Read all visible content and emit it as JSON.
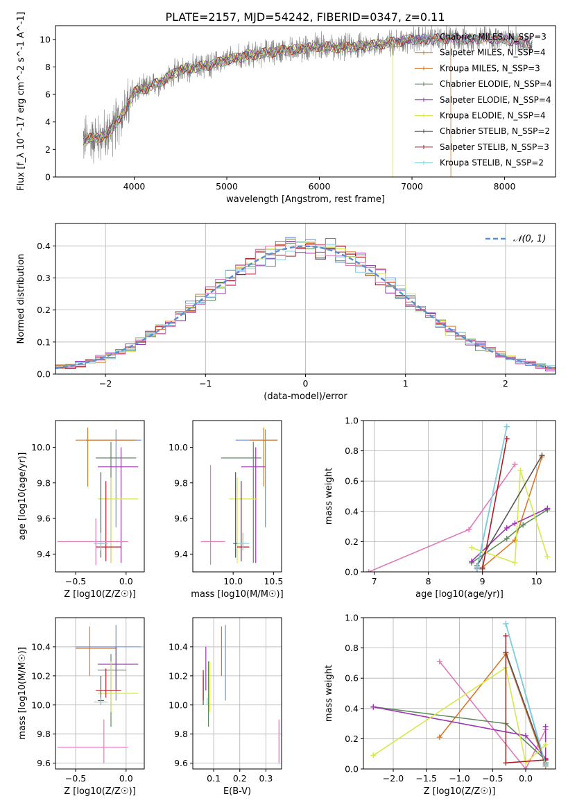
{
  "figure_title": "PLATE=2157, MJD=54242, FIBERID=0347, z=0.11",
  "colors": {
    "blue": "#6f8fd8",
    "orange": "#d9782b",
    "green": "#5f8a5c",
    "purple": "#9a34b0",
    "yellow": "#d8e84a",
    "dark": "#555555",
    "red": "#b01c22",
    "cyan": "#7dd2dc",
    "pink": "#e07ab8",
    "gray": "#7f7f7f",
    "gauss": "#5a8fd0",
    "grid": "#b0b0b0"
  },
  "chart_data": [
    {
      "id": "spectrum",
      "type": "line",
      "title": "PLATE=2157, MJD=54242, FIBERID=0347, z=0.11",
      "xlabel": "wavelength [Angstrom, rest frame]",
      "ylabel": "Flux [f_λ 10^-17 erg cm^-2 s^-1 A^-1]",
      "xlim": [
        3150,
        8550
      ],
      "ylim": [
        0,
        11
      ],
      "xticks": [
        4000,
        5000,
        6000,
        7000,
        8000
      ],
      "yticks": [
        0,
        2,
        4,
        6,
        8,
        10
      ],
      "grid": false,
      "legend_position": "top-right",
      "continuum_wavelength": [
        3450,
        3700,
        3900,
        4000,
        4150,
        4300,
        4500,
        4700,
        4850,
        5000,
        5200,
        5400,
        5600,
        5800,
        6000,
        6200,
        6400,
        6600,
        6800,
        7000,
        7200,
        7400,
        7600,
        7800,
        8000,
        8300
      ],
      "continuum_flux": [
        2.7,
        3.0,
        4.8,
        6.2,
        6.5,
        7.0,
        7.8,
        8.0,
        8.2,
        8.5,
        8.8,
        9.0,
        9.2,
        9.3,
        9.5,
        9.4,
        9.5,
        9.6,
        9.8,
        10.0,
        10.0,
        10.1,
        10.0,
        10.1,
        10.0,
        9.7
      ],
      "series": [
        {
          "name": "Chabrier MILES, N_SSP=3",
          "color": "blue"
        },
        {
          "name": "Salpeter MILES, N_SSP=4",
          "color": "orange"
        },
        {
          "name": "Kroupa MILES, N_SSP=3",
          "color": "orange"
        },
        {
          "name": "Chabrier ELODIE, N_SSP=4",
          "color": "green"
        },
        {
          "name": "Salpeter ELODIE, N_SSP=4",
          "color": "purple"
        },
        {
          "name": "Kroupa ELODIE, N_SSP=4",
          "color": "yellow"
        },
        {
          "name": "Chabrier STELIB, N_SSP=2",
          "color": "dark"
        },
        {
          "name": "Salpeter STELIB, N_SSP=3",
          "color": "red"
        },
        {
          "name": "Kroupa STELIB, N_SSP=2",
          "color": "cyan"
        }
      ]
    },
    {
      "id": "residuals",
      "type": "line",
      "xlabel": "(data-model)/error",
      "ylabel": "Normed distribution",
      "xlim": [
        -2.5,
        2.5
      ],
      "ylim": [
        0,
        0.47
      ],
      "xticks": [
        -2,
        -1,
        0,
        1,
        2
      ],
      "yticks": [
        0.0,
        0.1,
        0.2,
        0.3,
        0.4
      ],
      "grid": true,
      "legend_position": "top-right",
      "gaussian_label": "𝒩(0, 1)",
      "bin_width": 0.1,
      "hist_colors": [
        "blue",
        "orange",
        "green",
        "purple",
        "yellow",
        "red",
        "cyan",
        "pink"
      ]
    },
    {
      "id": "z_age",
      "type": "scatter",
      "xlabel": "Z [log10(Z/Z☉)]",
      "ylabel": "age [log10(age/yr)]",
      "xlim": [
        -0.7,
        0.18
      ],
      "ylim": [
        9.3,
        10.15
      ],
      "xticks": [
        -0.5,
        0.0
      ],
      "yticks": [
        9.4,
        9.6,
        9.8,
        10.0
      ],
      "grid": false,
      "points": [
        {
          "c": "blue",
          "x": -0.1,
          "xe": [
            -0.4,
            0.15
          ],
          "y": 10.04,
          "ye": [
            9.55,
            10.1
          ]
        },
        {
          "c": "orange",
          "x": -0.38,
          "xe": [
            -0.5,
            0.1
          ],
          "y": 10.04,
          "ye": [
            9.78,
            10.11
          ]
        },
        {
          "c": "green",
          "x": -0.15,
          "xe": [
            -0.3,
            0.1
          ],
          "y": 9.94,
          "ye": [
            9.35,
            10.03
          ]
        },
        {
          "c": "purple",
          "x": -0.05,
          "xe": [
            -0.28,
            0.12
          ],
          "y": 9.89,
          "ye": [
            9.35,
            10.0
          ]
        },
        {
          "c": "yellow",
          "x": -0.15,
          "xe": [
            -0.28,
            0.12
          ],
          "y": 9.71,
          "ye": [
            9.35,
            9.83
          ]
        },
        {
          "c": "dark",
          "x": -0.25,
          "xe": [
            -0.28,
            -0.22
          ],
          "y": 9.46,
          "ye": [
            9.38,
            9.86
          ]
        },
        {
          "c": "red",
          "x": -0.2,
          "xe": [
            -0.3,
            -0.05
          ],
          "y": 9.44,
          "ye": [
            9.36,
            9.81
          ]
        },
        {
          "c": "cyan",
          "x": -0.25,
          "xe": [
            -0.32,
            -0.18
          ],
          "y": 9.46,
          "ye": [
            9.42,
            9.52
          ]
        },
        {
          "c": "pink",
          "x": -0.3,
          "xe": [
            -0.68,
            0.02
          ],
          "y": 9.47,
          "ye": [
            9.34,
            9.6
          ]
        }
      ]
    },
    {
      "id": "mass_age",
      "type": "scatter",
      "xlabel": "mass [log10(M/M☉)]",
      "ylabel": "",
      "xlim": [
        9.5,
        10.6
      ],
      "ylim": [
        9.3,
        10.15
      ],
      "xticks": [
        10.0,
        10.5
      ],
      "yticks": [
        9.4,
        9.6,
        9.8,
        10.0
      ],
      "grid": false,
      "points": [
        {
          "c": "blue",
          "x": 10.4,
          "xe": [
            10.03,
            10.55
          ],
          "y": 10.04,
          "ye": [
            9.55,
            10.1
          ]
        },
        {
          "c": "orange",
          "x": 10.38,
          "xe": [
            10.2,
            10.55
          ],
          "y": 10.04,
          "ye": [
            9.78,
            10.11
          ]
        },
        {
          "c": "green",
          "x": 10.25,
          "xe": [
            9.85,
            10.35
          ],
          "y": 9.94,
          "ye": [
            9.35,
            10.03
          ]
        },
        {
          "c": "purple",
          "x": 10.28,
          "xe": [
            10.1,
            10.4
          ],
          "y": 9.89,
          "ye": [
            9.35,
            10.0
          ]
        },
        {
          "c": "yellow",
          "x": 10.05,
          "xe": [
            9.95,
            10.3
          ],
          "y": 9.71,
          "ye": [
            9.35,
            9.83
          ]
        },
        {
          "c": "dark",
          "x": 10.03,
          "xe": [
            10.0,
            10.06
          ],
          "y": 9.46,
          "ye": [
            9.38,
            9.86
          ]
        },
        {
          "c": "red",
          "x": 10.1,
          "xe": [
            10.05,
            10.2
          ],
          "y": 9.44,
          "ye": [
            9.36,
            9.81
          ]
        },
        {
          "c": "cyan",
          "x": 10.12,
          "xe": [
            10.05,
            10.2
          ],
          "y": 9.46,
          "ye": [
            9.42,
            9.52
          ]
        },
        {
          "c": "pink",
          "x": 9.72,
          "xe": [
            9.6,
            9.9
          ],
          "y": 9.47,
          "ye": [
            9.34,
            9.9
          ]
        }
      ]
    },
    {
      "id": "weight_age",
      "type": "line",
      "xlabel": "age [log10(age/yr)]",
      "ylabel": "mass weight",
      "xlim": [
        6.8,
        10.35
      ],
      "ylim": [
        0,
        1
      ],
      "xticks": [
        7,
        8,
        9,
        10
      ],
      "yticks": [
        0.0,
        0.2,
        0.4,
        0.6,
        0.8,
        1.0
      ],
      "grid": true,
      "series": [
        {
          "c": "pink",
          "x": [
            6.9,
            8.75,
            9.6
          ],
          "y": [
            0.0,
            0.28,
            0.71
          ]
        },
        {
          "c": "blue",
          "x": [
            8.9,
            9.45
          ],
          "y": [
            0.02,
            0.96
          ]
        },
        {
          "c": "orange",
          "x": [
            9.0,
            9.6,
            10.1
          ],
          "y": [
            0.03,
            0.21,
            0.76
          ]
        },
        {
          "c": "green",
          "x": [
            8.8,
            9.45,
            9.75,
            10.2
          ],
          "y": [
            0.06,
            0.22,
            0.31,
            0.41
          ]
        },
        {
          "c": "purple",
          "x": [
            8.8,
            9.45,
            9.6,
            10.2
          ],
          "y": [
            0.07,
            0.29,
            0.32,
            0.42
          ]
        },
        {
          "c": "yellow",
          "x": [
            8.8,
            9.6,
            9.7,
            10.2
          ],
          "y": [
            0.16,
            0.06,
            0.67,
            0.1
          ]
        },
        {
          "c": "dark",
          "x": [
            8.9,
            10.1
          ],
          "y": [
            0.04,
            0.77
          ]
        },
        {
          "c": "red",
          "x": [
            9.0,
            9.45
          ],
          "y": [
            0.02,
            0.88
          ]
        },
        {
          "c": "cyan",
          "x": [
            8.9,
            9.45
          ],
          "y": [
            0.03,
            0.96
          ]
        }
      ]
    },
    {
      "id": "z_mass",
      "type": "scatter",
      "xlabel": "Z [log10(Z/Z☉)]",
      "ylabel": "mass [log10(M/M☉)]",
      "xlim": [
        -0.7,
        0.18
      ],
      "ylim": [
        9.56,
        10.6
      ],
      "xticks": [
        -0.5,
        0.0
      ],
      "yticks": [
        9.6,
        9.8,
        10.0,
        10.2,
        10.4
      ],
      "grid": true,
      "points": [
        {
          "c": "blue",
          "x": -0.1,
          "xe": [
            -0.5,
            0.15
          ],
          "y": 10.4,
          "ye": [
            10.03,
            10.55
          ]
        },
        {
          "c": "orange",
          "x": -0.36,
          "xe": [
            -0.5,
            -0.1
          ],
          "y": 10.39,
          "ye": [
            10.2,
            10.54
          ]
        },
        {
          "c": "green",
          "x": -0.15,
          "xe": [
            -0.28,
            0.0
          ],
          "y": 10.24,
          "ye": [
            9.85,
            10.35
          ]
        },
        {
          "c": "purple",
          "x": -0.1,
          "xe": [
            -0.28,
            0.12
          ],
          "y": 10.28,
          "ye": [
            10.1,
            10.4
          ]
        },
        {
          "c": "yellow",
          "x": -0.15,
          "xe": [
            -0.28,
            0.12
          ],
          "y": 10.08,
          "ye": [
            9.95,
            10.3
          ]
        },
        {
          "c": "dark",
          "x": -0.25,
          "xe": [
            -0.28,
            -0.22
          ],
          "y": 10.03,
          "ye": [
            10.0,
            10.2
          ]
        },
        {
          "c": "red",
          "x": -0.2,
          "xe": [
            -0.3,
            -0.05
          ],
          "y": 10.1,
          "ye": [
            10.05,
            10.25
          ]
        },
        {
          "c": "cyan",
          "x": -0.25,
          "xe": [
            -0.32,
            -0.18
          ],
          "y": 10.02,
          "ye": [
            10.0,
            10.05
          ]
        },
        {
          "c": "pink",
          "x": -0.22,
          "xe": [
            -0.68,
            0.02
          ],
          "y": 9.71,
          "ye": [
            9.6,
            9.9
          ]
        }
      ]
    },
    {
      "id": "ebv_mass",
      "type": "scatter",
      "xlabel": "E(B-V)",
      "ylabel": "",
      "xlim": [
        0.02,
        0.36
      ],
      "ylim": [
        9.56,
        10.6
      ],
      "xticks": [
        0.1,
        0.2,
        0.3
      ],
      "yticks": [
        9.6,
        9.8,
        10.0,
        10.2,
        10.4
      ],
      "grid": true,
      "points": [
        {
          "c": "blue",
          "x": 0.145,
          "ye": [
            10.03,
            10.55
          ]
        },
        {
          "c": "orange",
          "x": 0.13,
          "ye": [
            10.2,
            10.54
          ]
        },
        {
          "c": "green",
          "x": 0.08,
          "ye": [
            9.85,
            10.3
          ]
        },
        {
          "c": "purple",
          "x": 0.07,
          "ye": [
            10.1,
            10.4
          ]
        },
        {
          "c": "yellow",
          "x": 0.085,
          "ye": [
            9.95,
            10.3
          ]
        },
        {
          "c": "dark",
          "x": 0.06,
          "ye": [
            10.0,
            10.2
          ]
        },
        {
          "c": "red",
          "x": 0.06,
          "ye": [
            10.03,
            10.24
          ]
        },
        {
          "c": "cyan",
          "x": 0.075,
          "ye": [
            10.0,
            10.05
          ]
        },
        {
          "c": "pink",
          "x": 0.35,
          "ye": [
            9.6,
            9.9
          ]
        }
      ]
    },
    {
      "id": "weight_z",
      "type": "line",
      "xlabel": "Z [log10(Z/Z☉)]",
      "ylabel": "mass weight",
      "xlim": [
        -2.45,
        0.45
      ],
      "ylim": [
        0,
        1
      ],
      "xticks": [
        -2.0,
        -1.5,
        -1.0,
        -0.5,
        0.0
      ],
      "yticks": [
        0.0,
        0.2,
        0.4,
        0.6,
        0.8,
        1.0
      ],
      "grid": true,
      "series": [
        {
          "c": "pink",
          "x": [
            -1.3,
            0.0,
            0.3
          ],
          "y": [
            0.71,
            0.0,
            0.26
          ]
        },
        {
          "c": "blue",
          "x": [
            -0.3,
            0.3
          ],
          "y": [
            0.96,
            0.02
          ]
        },
        {
          "c": "orange",
          "x": [
            -1.3,
            -0.3,
            0.3
          ],
          "y": [
            0.21,
            0.76,
            0.02
          ]
        },
        {
          "c": "green",
          "x": [
            -2.3,
            -0.3,
            0.3
          ],
          "y": [
            0.41,
            0.3,
            0.06
          ]
        },
        {
          "c": "purple",
          "x": [
            -2.3,
            0.0,
            0.3,
            0.3
          ],
          "y": [
            0.41,
            0.22,
            0.07,
            0.28
          ]
        },
        {
          "c": "yellow",
          "x": [
            -2.3,
            -0.3,
            0.0,
            0.3
          ],
          "y": [
            0.09,
            0.67,
            0.04,
            0.16
          ]
        },
        {
          "c": "dark",
          "x": [
            -0.3,
            0.3
          ],
          "y": [
            0.77,
            0.04
          ]
        },
        {
          "c": "red",
          "x": [
            -0.3,
            -0.3,
            0.3
          ],
          "y": [
            0.88,
            0.04,
            0.06
          ]
        },
        {
          "c": "cyan",
          "x": [
            -0.3,
            0.3
          ],
          "y": [
            0.96,
            0.03
          ]
        }
      ]
    }
  ]
}
